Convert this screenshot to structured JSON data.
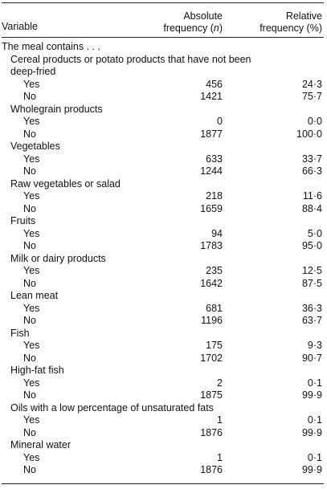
{
  "header": {
    "variable": "Variable",
    "absolute_line1": "Absolute",
    "absolute_line2": "frequency (",
    "absolute_n": "n",
    "absolute_close": ")",
    "relative_line1": "Relative",
    "relative_line2": "frequency (%)"
  },
  "intro": "The meal contains . . .",
  "categories": [
    {
      "name_lines": [
        "Cereal products or potato products that have not been",
        "deep-fried"
      ],
      "options": [
        {
          "label": "Yes",
          "abs": "456",
          "rel": "24·3"
        },
        {
          "label": "No",
          "abs": "1421",
          "rel": "75·7"
        }
      ]
    },
    {
      "name_lines": [
        "Wholegrain products"
      ],
      "options": [
        {
          "label": "Yes",
          "abs": "0",
          "rel": "0·0"
        },
        {
          "label": "No",
          "abs": "1877",
          "rel": "100·0"
        }
      ]
    },
    {
      "name_lines": [
        "Vegetables"
      ],
      "options": [
        {
          "label": "Yes",
          "abs": "633",
          "rel": "33·7"
        },
        {
          "label": "No",
          "abs": "1244",
          "rel": "66·3"
        }
      ]
    },
    {
      "name_lines": [
        "Raw vegetables or salad"
      ],
      "options": [
        {
          "label": "Yes",
          "abs": "218",
          "rel": "11·6"
        },
        {
          "label": "No",
          "abs": "1659",
          "rel": "88·4"
        }
      ]
    },
    {
      "name_lines": [
        "Fruits"
      ],
      "options": [
        {
          "label": "Yes",
          "abs": "94",
          "rel": "5·0"
        },
        {
          "label": "No",
          "abs": "1783",
          "rel": "95·0"
        }
      ]
    },
    {
      "name_lines": [
        "Milk or dairy products"
      ],
      "options": [
        {
          "label": "Yes",
          "abs": "235",
          "rel": "12·5"
        },
        {
          "label": "No",
          "abs": "1642",
          "rel": "87·5"
        }
      ]
    },
    {
      "name_lines": [
        "Lean meat"
      ],
      "options": [
        {
          "label": "Yes",
          "abs": "681",
          "rel": "36·3"
        },
        {
          "label": "No",
          "abs": "1196",
          "rel": "63·7"
        }
      ]
    },
    {
      "name_lines": [
        "Fish"
      ],
      "options": [
        {
          "label": "Yes",
          "abs": "175",
          "rel": "9·3"
        },
        {
          "label": "No",
          "abs": "1702",
          "rel": "90·7"
        }
      ]
    },
    {
      "name_lines": [
        "High-fat fish"
      ],
      "options": [
        {
          "label": "Yes",
          "abs": "2",
          "rel": "0·1"
        },
        {
          "label": "No",
          "abs": "1875",
          "rel": "99·9"
        }
      ]
    },
    {
      "name_lines": [
        "Oils with a low percentage of unsaturated fats"
      ],
      "options": [
        {
          "label": "Yes",
          "abs": "1",
          "rel": "0·1"
        },
        {
          "label": "No",
          "abs": "1876",
          "rel": "99·9"
        }
      ]
    },
    {
      "name_lines": [
        "Mineral water"
      ],
      "options": [
        {
          "label": "Yes",
          "abs": "1",
          "rel": "0·1"
        },
        {
          "label": "No",
          "abs": "1876",
          "rel": "99·9"
        }
      ]
    }
  ]
}
